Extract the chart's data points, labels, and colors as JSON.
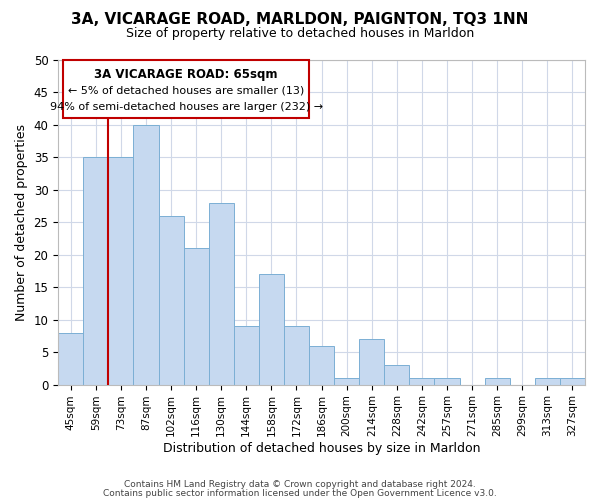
{
  "title": "3A, VICARAGE ROAD, MARLDON, PAIGNTON, TQ3 1NN",
  "subtitle": "Size of property relative to detached houses in Marldon",
  "xlabel": "Distribution of detached houses by size in Marldon",
  "ylabel": "Number of detached properties",
  "bar_color": "#c6d9f0",
  "bar_edge_color": "#7bafd4",
  "categories": [
    "45sqm",
    "59sqm",
    "73sqm",
    "87sqm",
    "102sqm",
    "116sqm",
    "130sqm",
    "144sqm",
    "158sqm",
    "172sqm",
    "186sqm",
    "200sqm",
    "214sqm",
    "228sqm",
    "242sqm",
    "257sqm",
    "271sqm",
    "285sqm",
    "299sqm",
    "313sqm",
    "327sqm"
  ],
  "values": [
    8,
    35,
    35,
    40,
    26,
    21,
    28,
    9,
    17,
    9,
    6,
    1,
    7,
    3,
    1,
    1,
    0,
    1,
    0,
    1,
    1
  ],
  "ylim": [
    0,
    50
  ],
  "yticks": [
    0,
    5,
    10,
    15,
    20,
    25,
    30,
    35,
    40,
    45,
    50
  ],
  "annotation_title": "3A VICARAGE ROAD: 65sqm",
  "annotation_line1": "← 5% of detached houses are smaller (13)",
  "annotation_line2": "94% of semi-detached houses are larger (232) →",
  "vline_color": "#c00000",
  "footer_line1": "Contains HM Land Registry data © Crown copyright and database right 2024.",
  "footer_line2": "Contains public sector information licensed under the Open Government Licence v3.0.",
  "background_color": "#ffffff",
  "grid_color": "#d0d8e8"
}
